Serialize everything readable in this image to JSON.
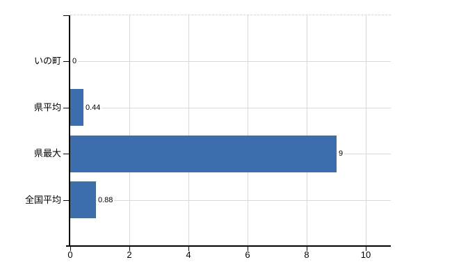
{
  "chart_data": {
    "type": "bar",
    "orientation": "horizontal",
    "categories": [
      "いの町",
      "県平均",
      "県最大",
      "全国平均"
    ],
    "values": [
      0,
      0.44,
      9,
      0.88
    ],
    "value_labels": [
      "0",
      "0.44",
      "9",
      "0.88"
    ],
    "x_ticks": [
      0,
      2,
      4,
      6,
      8,
      10
    ],
    "x_tick_labels": [
      "0",
      "2",
      "4",
      "6",
      "8",
      "10"
    ],
    "xlim": [
      0,
      10.8
    ],
    "grid": true,
    "legend": false,
    "colors": {
      "bar": "#3c6eae",
      "grid": "#d9d9d9",
      "axis": "#000000",
      "text": "#000000",
      "background": "#ffffff"
    }
  }
}
